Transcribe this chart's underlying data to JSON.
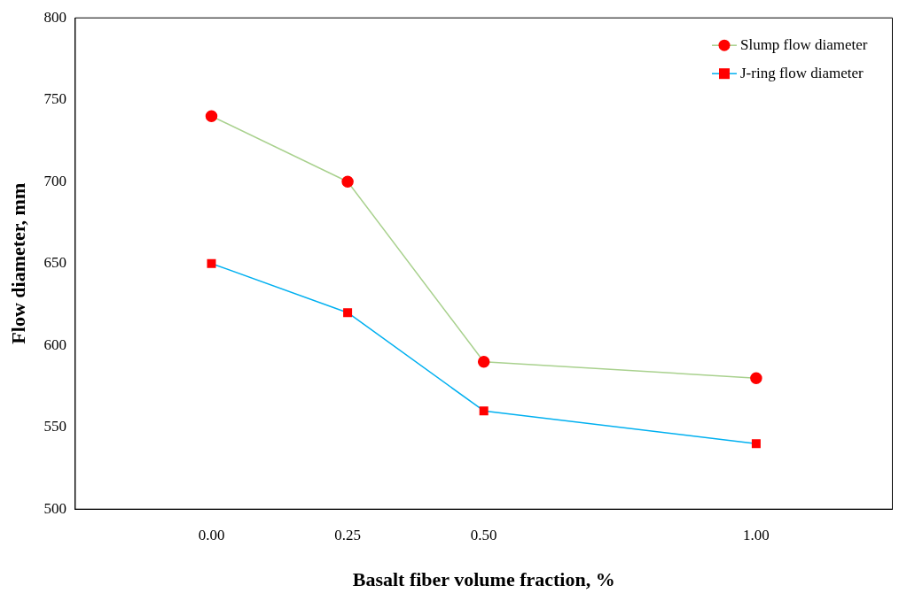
{
  "chart_data": {
    "type": "line",
    "xlabel": "Basalt fiber volume fraction, %",
    "ylabel": "Flow diameter, mm",
    "x": [
      0,
      0.25,
      0.5,
      1
    ],
    "series": [
      {
        "name": "Slump flow diameter",
        "color": "#a9d18e",
        "colors": [
          "#ff0000",
          "#ff0000",
          "#ff0000",
          "#ff0000"
        ],
        "marker": "circle",
        "values": [
          740,
          700,
          590,
          580
        ]
      },
      {
        "name": "J-ring flow diameter",
        "color": "#00b0f0",
        "colors": [
          "#ff0000",
          "#ff0000",
          "#ff0000",
          "#ff0000"
        ],
        "marker": "square",
        "values": [
          650,
          620,
          560,
          540
        ]
      }
    ],
    "xlim": [
      -0.25,
      1.25
    ],
    "xticks": [
      {
        "value": 0,
        "label": "0.00"
      },
      {
        "value": 0.25,
        "label": "0.25"
      },
      {
        "value": 0.5,
        "label": "0.50"
      },
      {
        "value": 1,
        "label": "1.00"
      }
    ],
    "ylim": [
      500,
      800
    ],
    "yticks": [
      500,
      550,
      600,
      650,
      700,
      750,
      800
    ],
    "grid": false,
    "legend": "top right"
  }
}
